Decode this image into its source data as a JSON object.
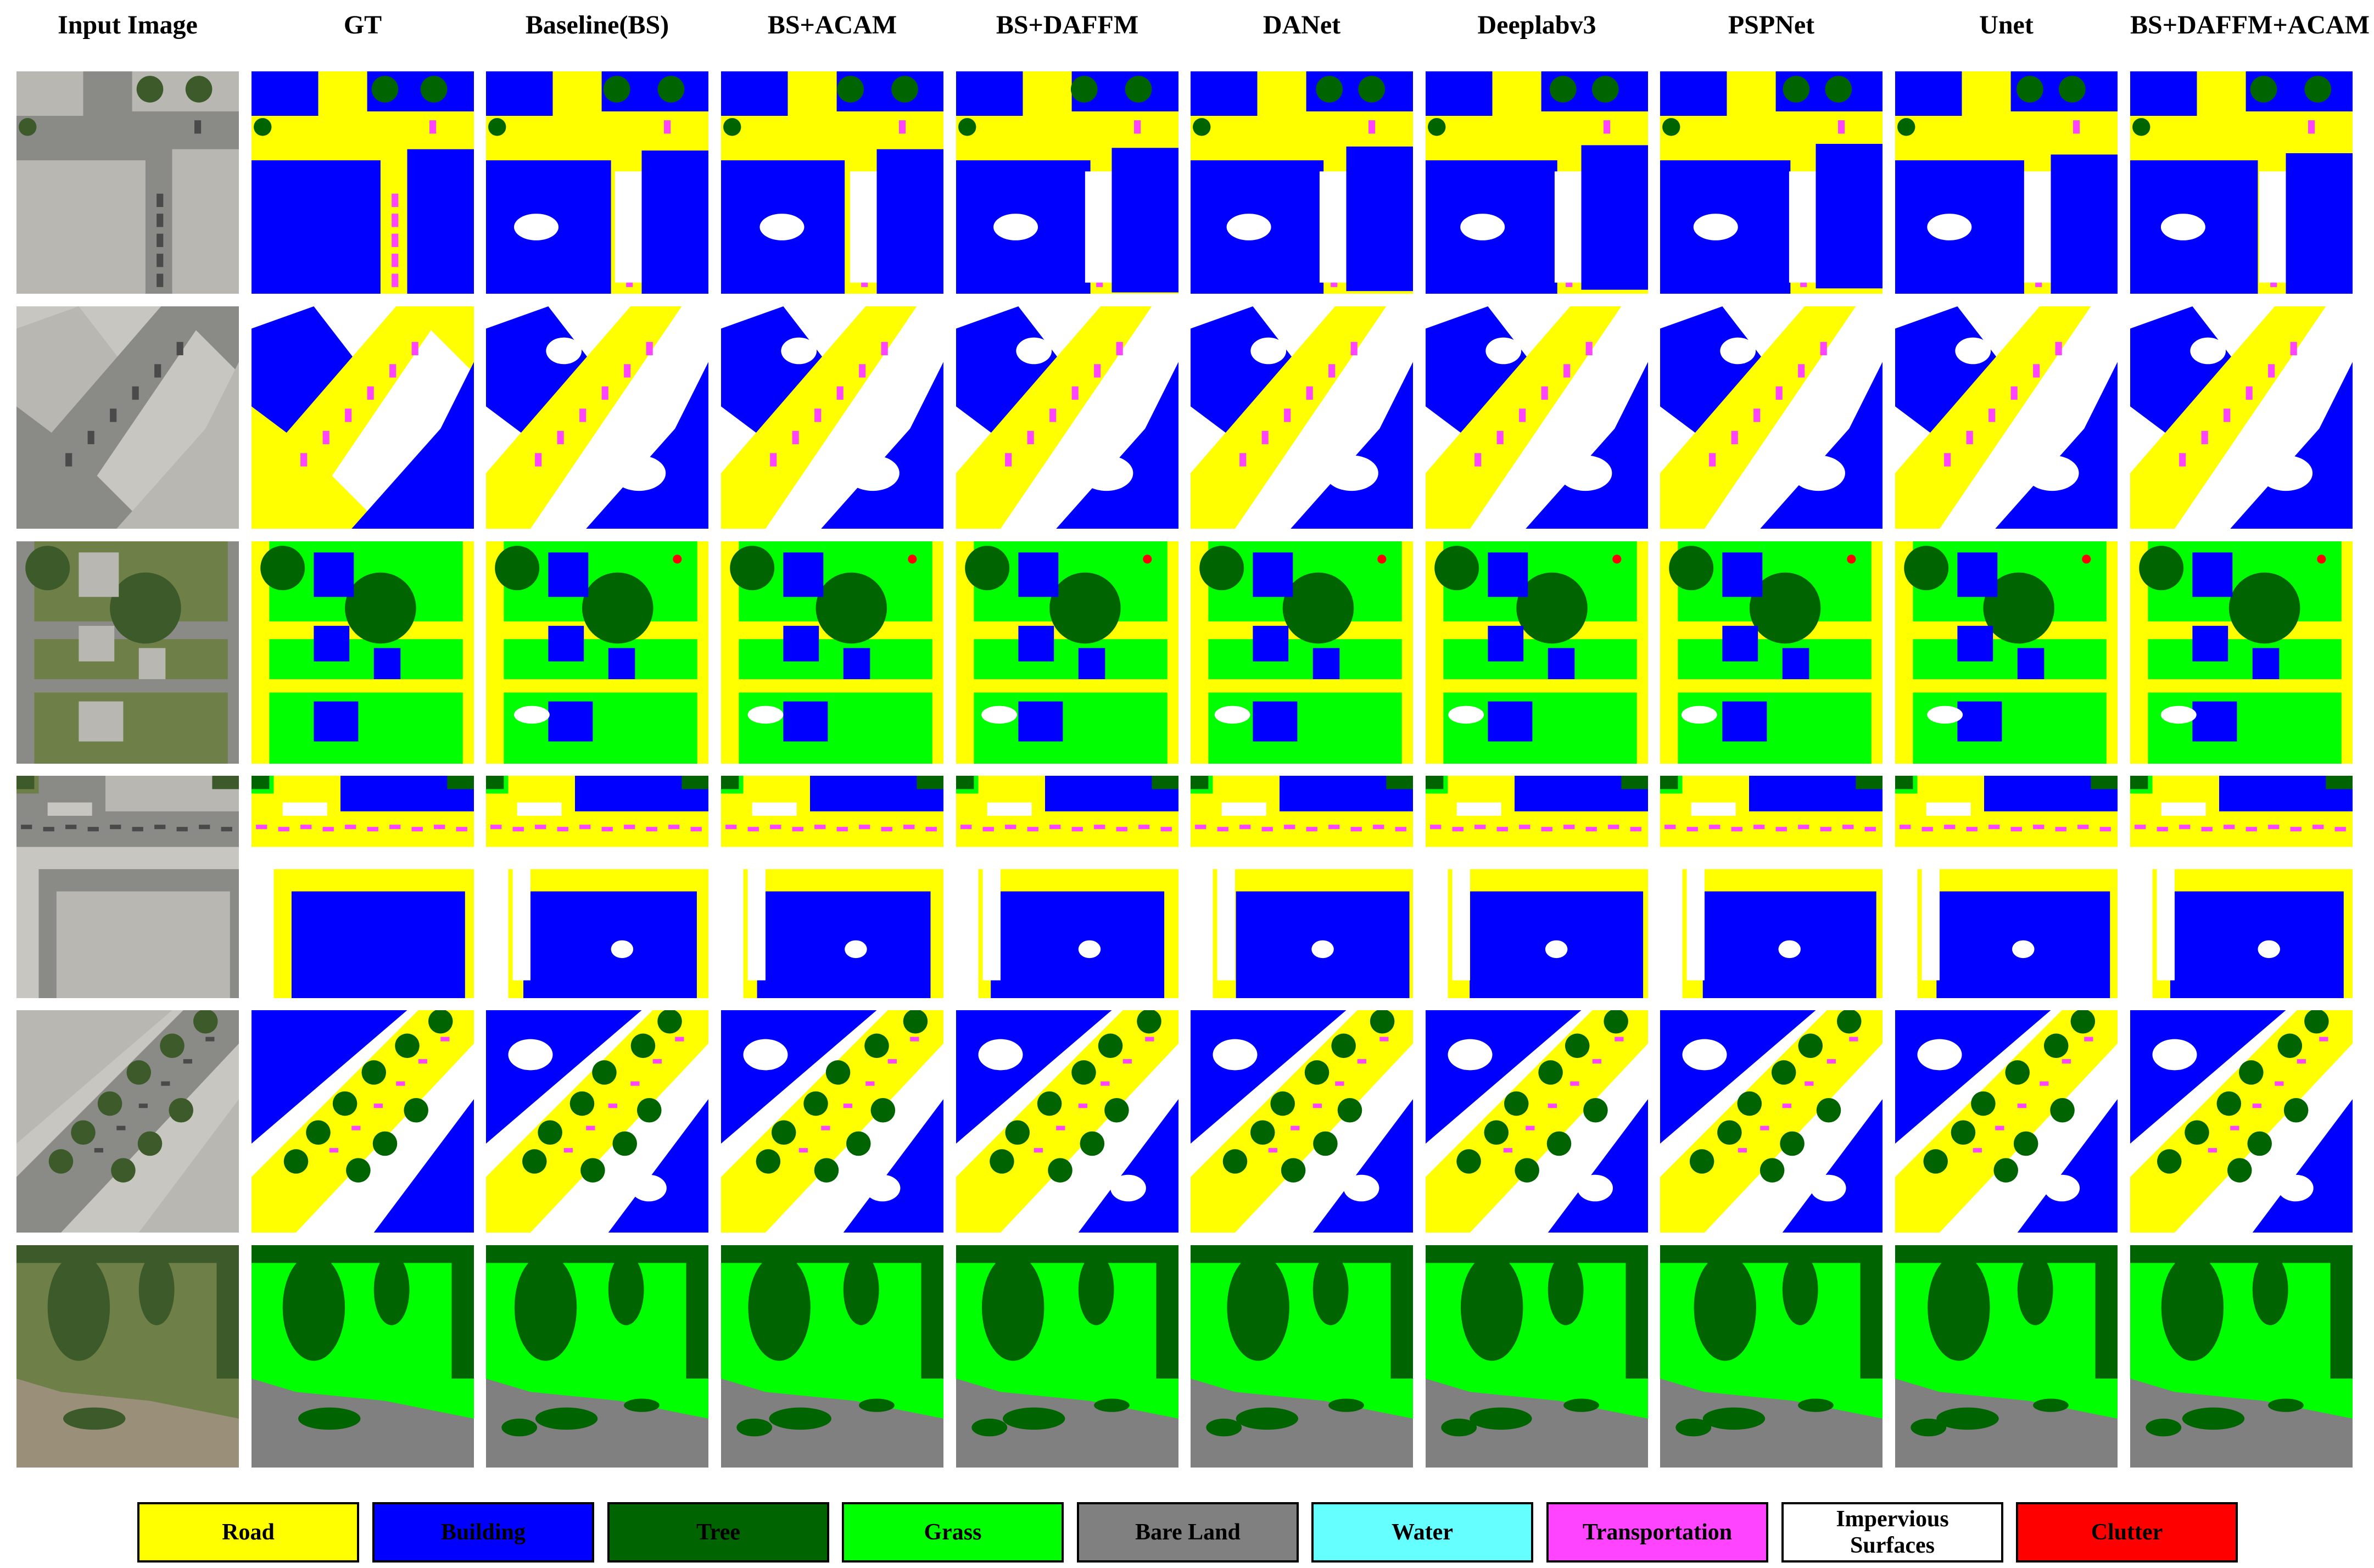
{
  "columns": [
    "Input Image",
    "GT",
    "Baseline(BS)",
    "BS+ACAM",
    "BS+DAFFM",
    "DANet",
    "Deeplabv3",
    "PSPNet",
    "Unet",
    "BS+DAFFM+ACAM"
  ],
  "legend": [
    {
      "label": "Road",
      "color": "#ffff00"
    },
    {
      "label": "Building",
      "color": "#0000ff"
    },
    {
      "label": "Tree",
      "color": "#006400"
    },
    {
      "label": "Grass",
      "color": "#00ff00"
    },
    {
      "label": "Bare Land",
      "color": "#808080"
    },
    {
      "label": "Water",
      "color": "#66ffff"
    },
    {
      "label": "Transportation",
      "color": "#ff44ff"
    },
    {
      "label": "Impervious Surfaces",
      "color": "#ffffff"
    },
    {
      "label": "Clutter",
      "color": "#ff0000"
    }
  ],
  "rows": [
    {
      "scene": "intersection"
    },
    {
      "scene": "diagonal-street"
    },
    {
      "scene": "suburban-grass"
    },
    {
      "scene": "block-building"
    },
    {
      "scene": "tree-lined-avenue"
    },
    {
      "scene": "vegetation-bare-land"
    }
  ]
}
